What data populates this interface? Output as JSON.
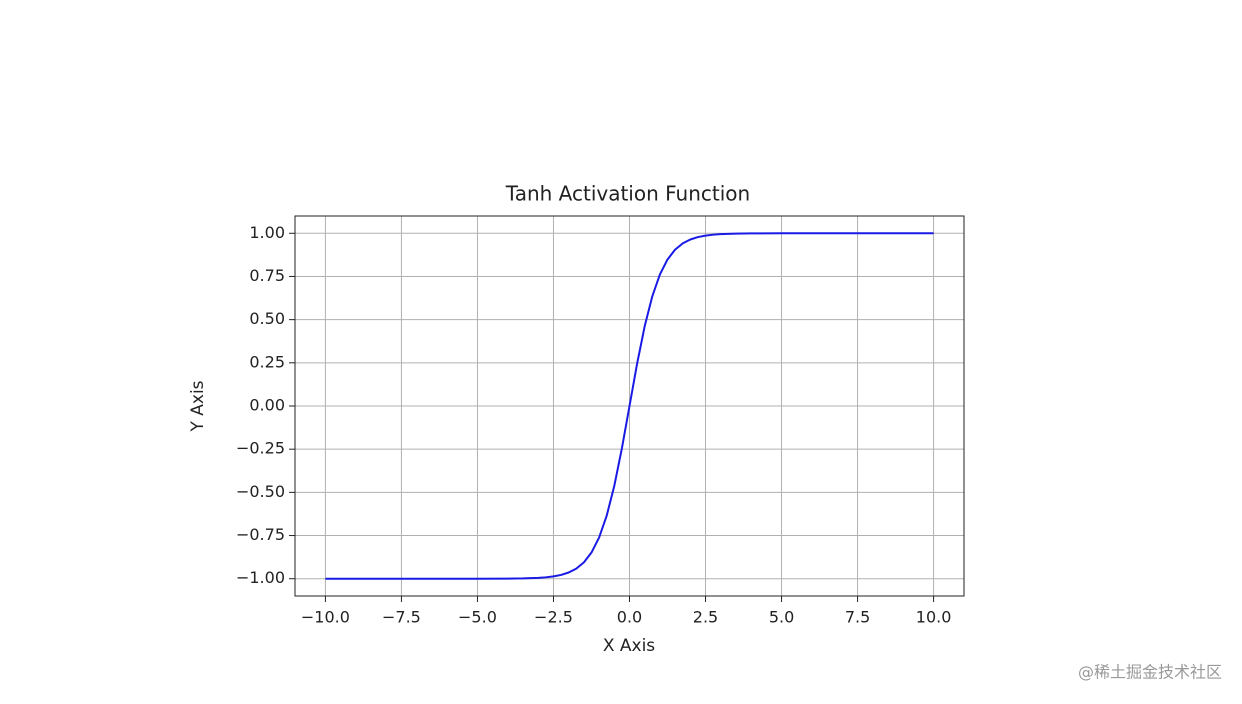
{
  "chart_data": {
    "type": "line",
    "title": "Tanh Activation Function",
    "x_label": "X Axis",
    "y_label": "Y Axis",
    "watermark": "@稀土掘金技术社区",
    "x": [
      -10,
      -9,
      -8,
      -7,
      -6,
      -5,
      -4,
      -3.5,
      -3,
      -2.75,
      -2.5,
      -2.25,
      -2,
      -1.75,
      -1.5,
      -1.25,
      -1,
      -0.75,
      -0.5,
      -0.25,
      0,
      0.25,
      0.5,
      0.75,
      1,
      1.25,
      1.5,
      1.75,
      2,
      2.25,
      2.5,
      2.75,
      3,
      3.5,
      4,
      5,
      6,
      7,
      8,
      9,
      10
    ],
    "series": [
      {
        "name": "tanh",
        "color": "#1a1ae6",
        "values": [
          -1.0,
          -1.0,
          -1.0,
          -1.0,
          -1.0,
          -0.9999,
          -0.9993,
          -0.9982,
          -0.9951,
          -0.9918,
          -0.9866,
          -0.978,
          -0.964,
          -0.9414,
          -0.9051,
          -0.8483,
          -0.7616,
          -0.6351,
          -0.4621,
          -0.2449,
          0,
          0.2449,
          0.4621,
          0.6351,
          0.7616,
          0.8483,
          0.9051,
          0.9414,
          0.964,
          0.978,
          0.9866,
          0.9918,
          0.9951,
          0.9982,
          0.9993,
          0.9999,
          1.0,
          1.0,
          1.0,
          1.0,
          1.0
        ]
      }
    ],
    "xlim": [
      -11,
      11
    ],
    "ylim": [
      -1.1,
      1.1
    ],
    "xticks": [
      {
        "value": -10,
        "label": "−10.0"
      },
      {
        "value": -7.5,
        "label": "−7.5"
      },
      {
        "value": -5,
        "label": "−5.0"
      },
      {
        "value": -2.5,
        "label": "−2.5"
      },
      {
        "value": 0,
        "label": "0.0"
      },
      {
        "value": 2.5,
        "label": "2.5"
      },
      {
        "value": 5,
        "label": "5.0"
      },
      {
        "value": 7.5,
        "label": "7.5"
      },
      {
        "value": 10,
        "label": "10.0"
      }
    ],
    "yticks": [
      {
        "value": -1,
        "label": "−1.00"
      },
      {
        "value": -0.75,
        "label": "−0.75"
      },
      {
        "value": -0.5,
        "label": "−0.50"
      },
      {
        "value": -0.25,
        "label": "−0.25"
      },
      {
        "value": 0,
        "label": "0.00"
      },
      {
        "value": 0.25,
        "label": "0.25"
      },
      {
        "value": 0.5,
        "label": "0.50"
      },
      {
        "value": 0.75,
        "label": "0.75"
      },
      {
        "value": 1,
        "label": "1.00"
      }
    ],
    "grid": true
  }
}
